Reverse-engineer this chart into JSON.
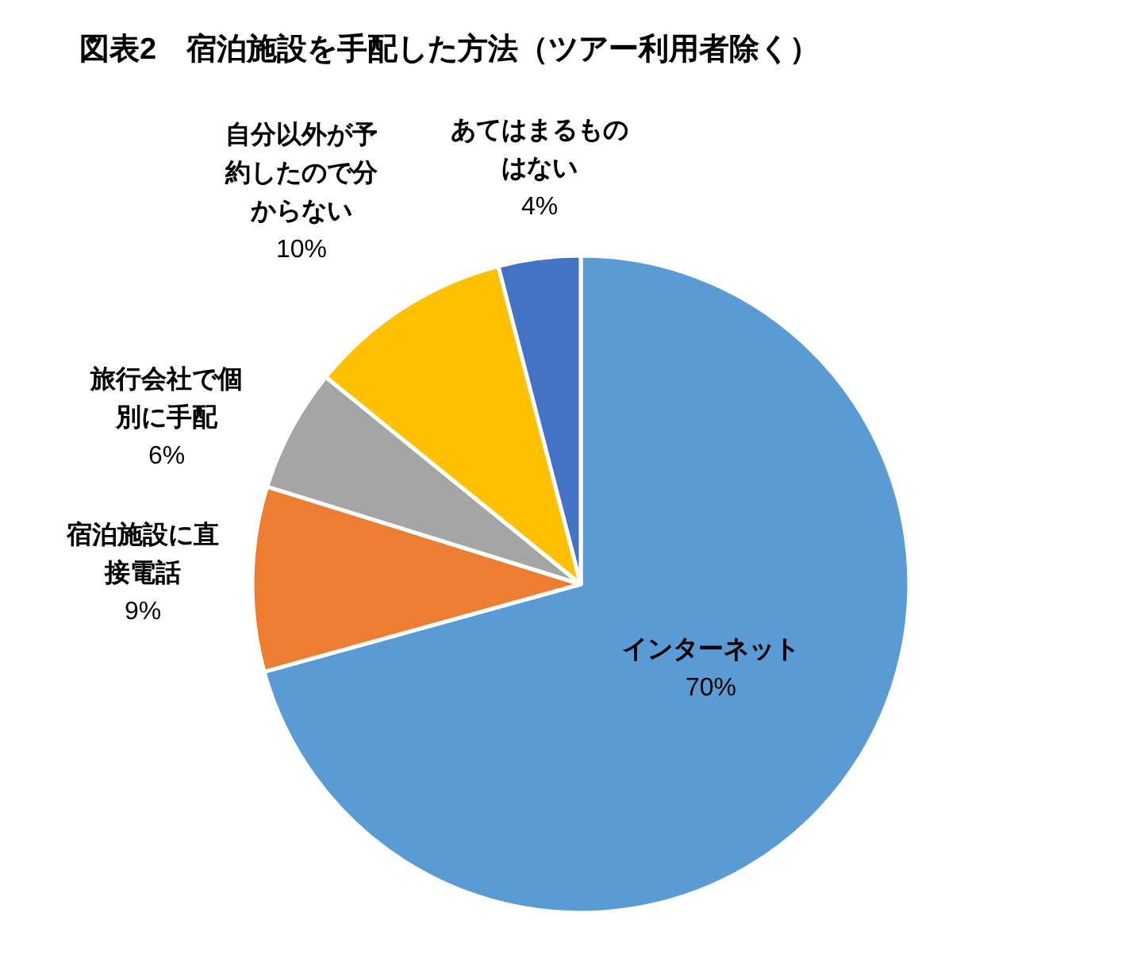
{
  "chart_data": {
    "type": "pie",
    "title": "図表2　宿泊施設を手配した方法（ツアー利用者除く）",
    "categories": [
      "インターネット",
      "宿泊施設に直接電話",
      "旅行会社で個別に手配",
      "自分以外が予約したので分からない",
      "あてはまるものはない"
    ],
    "values": [
      70,
      9,
      6,
      10,
      4
    ],
    "colors": [
      "#5b9bd5",
      "#ed7d31",
      "#a5a5a5",
      "#ffc000",
      "#4472c4"
    ],
    "value_labels": [
      "70%",
      "9%",
      "6%",
      "10%",
      "4%"
    ]
  }
}
